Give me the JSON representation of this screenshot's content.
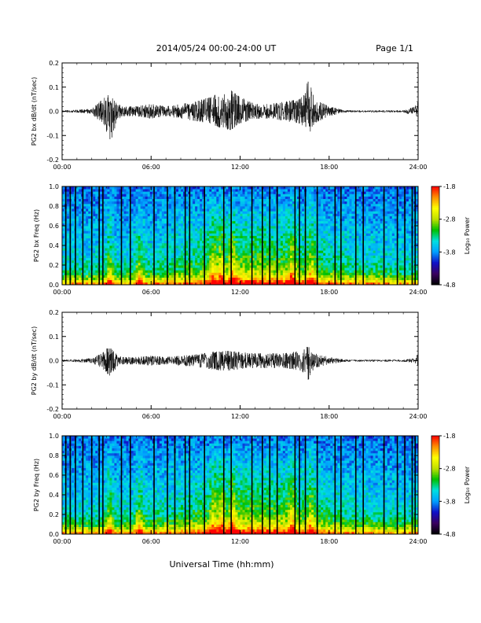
{
  "header": {
    "title": "2014/05/24  00:00-24:00 UT",
    "page": "Page 1/1"
  },
  "footer": {
    "xlabel": "Universal Time (hh:mm)"
  },
  "colors": {
    "trace": "#000000",
    "spectro_background": "#2a1a8c",
    "colormap": [
      "#000000",
      "#3a0060",
      "#1010c8",
      "#00a0ff",
      "#00e0e0",
      "#00c000",
      "#c0e000",
      "#ffff00",
      "#ff9000",
      "#ff0000"
    ]
  },
  "chart_data": [
    {
      "type": "line",
      "ylabel": "PG2 bx dB/dt (nT/sec)",
      "ylim": [
        -0.2,
        0.2
      ],
      "yticks": [
        "0.2",
        "0.1",
        "0.0",
        "-0.1",
        "-0.2"
      ],
      "xlim": [
        "00:00",
        "24:00"
      ],
      "xticks": [
        "00:00",
        "06:00",
        "12:00",
        "18:00",
        "24:00"
      ],
      "envelope": {
        "x_hours": [
          0,
          1,
          2,
          2.7,
          3.0,
          3.3,
          3.6,
          4,
          5,
          6,
          7,
          8,
          9,
          10,
          10.7,
          11.3,
          12,
          13,
          14,
          15,
          16,
          16.3,
          16.6,
          17,
          18,
          19,
          20,
          21,
          22,
          23,
          23.8,
          24
        ],
        "upper": [
          0.004,
          0.006,
          0.01,
          0.05,
          0.07,
          0.06,
          0.04,
          0.02,
          0.02,
          0.03,
          0.02,
          0.03,
          0.04,
          0.06,
          0.08,
          0.09,
          0.06,
          0.03,
          0.03,
          0.04,
          0.05,
          0.07,
          0.14,
          0.05,
          0.02,
          0.005,
          0.004,
          0.004,
          0.004,
          0.004,
          0.02,
          0.04
        ],
        "lower": [
          -0.004,
          -0.006,
          -0.01,
          -0.05,
          -0.1,
          -0.12,
          -0.06,
          -0.02,
          -0.02,
          -0.03,
          -0.02,
          -0.03,
          -0.04,
          -0.05,
          -0.07,
          -0.08,
          -0.05,
          -0.03,
          -0.03,
          -0.04,
          -0.05,
          -0.07,
          -0.1,
          -0.05,
          -0.02,
          -0.005,
          -0.004,
          -0.004,
          -0.004,
          -0.004,
          -0.02,
          -0.05
        ]
      }
    },
    {
      "type": "heatmap",
      "ylabel": "PG2 bx Freq (Hz)",
      "ylim": [
        0.0,
        1.0
      ],
      "yticks": [
        "1.0",
        "0.8",
        "0.6",
        "0.4",
        "0.2",
        "0.0"
      ],
      "xlim": [
        "00:00",
        "24:00"
      ],
      "xticks": [
        "00:00",
        "06:00",
        "12:00",
        "18:00",
        "24:00"
      ],
      "colorbar": {
        "label": "Log₁₀ Power",
        "ticks": [
          "-1.8",
          "-2.8",
          "-3.8",
          "-4.8"
        ],
        "range": [
          -4.8,
          -1.8
        ]
      },
      "bright_bands_hours": [
        3.2,
        5.2,
        10.2,
        10.7,
        11.5,
        15.5,
        16.8
      ],
      "gap_lines_hours": [
        0.25,
        0.55,
        0.9,
        1.4,
        2.0,
        2.5,
        2.75,
        4.0,
        4.6,
        6.2,
        7.1,
        7.6,
        8.3,
        8.6,
        9.6,
        10.9,
        11.4,
        12.8,
        13.5,
        14.0,
        14.5,
        15.7,
        16.0,
        16.4,
        17.2,
        18.4,
        18.8,
        19.8,
        20.3,
        21.7,
        22.6,
        23.1,
        23.6,
        23.8
      ]
    },
    {
      "type": "line",
      "ylabel": "PG2 by dB/dt (nT/sec)",
      "ylim": [
        -0.2,
        0.2
      ],
      "yticks": [
        "0.2",
        "0.1",
        "0.0",
        "-0.1",
        "-0.2"
      ],
      "xlim": [
        "00:00",
        "24:00"
      ],
      "xticks": [
        "00:00",
        "06:00",
        "12:00",
        "18:00",
        "24:00"
      ],
      "envelope": {
        "x_hours": [
          0,
          1,
          2,
          2.7,
          3.0,
          3.3,
          3.6,
          4,
          5,
          6,
          7,
          8,
          9,
          10,
          10.7,
          11.3,
          12,
          13,
          14,
          15,
          16,
          16.3,
          16.6,
          17,
          18,
          19,
          20,
          21,
          22,
          23,
          23.8,
          24
        ],
        "upper": [
          0.004,
          0.006,
          0.01,
          0.03,
          0.05,
          0.05,
          0.03,
          0.015,
          0.015,
          0.02,
          0.015,
          0.02,
          0.025,
          0.035,
          0.04,
          0.04,
          0.035,
          0.03,
          0.03,
          0.03,
          0.04,
          0.05,
          0.06,
          0.03,
          0.015,
          0.005,
          0.004,
          0.004,
          0.004,
          0.004,
          0.01,
          0.03
        ],
        "lower": [
          -0.004,
          -0.006,
          -0.01,
          -0.03,
          -0.05,
          -0.07,
          -0.04,
          -0.015,
          -0.015,
          -0.02,
          -0.015,
          -0.02,
          -0.025,
          -0.035,
          -0.04,
          -0.04,
          -0.035,
          -0.03,
          -0.03,
          -0.03,
          -0.04,
          -0.05,
          -0.08,
          -0.03,
          -0.015,
          -0.005,
          -0.004,
          -0.004,
          -0.004,
          -0.004,
          -0.01,
          -0.03
        ]
      }
    },
    {
      "type": "heatmap",
      "ylabel": "PG2 by Freq (Hz)",
      "ylim": [
        0.0,
        1.0
      ],
      "yticks": [
        "1.0",
        "0.8",
        "0.6",
        "0.4",
        "0.2",
        "0.0"
      ],
      "xlim": [
        "00:00",
        "24:00"
      ],
      "xticks": [
        "00:00",
        "06:00",
        "12:00",
        "18:00",
        "24:00"
      ],
      "colorbar": {
        "label": "Log₁₀ Power",
        "ticks": [
          "-1.8",
          "-2.8",
          "-3.8",
          "-4.8"
        ],
        "range": [
          -4.8,
          -1.8
        ]
      },
      "bright_bands_hours": [
        3.2,
        5.2,
        10.2,
        10.7,
        11.5,
        15.5,
        16.8
      ],
      "gap_lines_hours": [
        0.25,
        0.55,
        0.9,
        1.4,
        2.0,
        2.5,
        2.75,
        4.0,
        4.6,
        6.2,
        7.1,
        7.6,
        8.3,
        8.6,
        9.6,
        10.9,
        11.4,
        12.8,
        13.5,
        14.0,
        14.5,
        15.7,
        16.0,
        16.4,
        17.2,
        18.4,
        18.8,
        19.8,
        20.3,
        21.7,
        22.6,
        23.1,
        23.6,
        23.8
      ]
    }
  ]
}
